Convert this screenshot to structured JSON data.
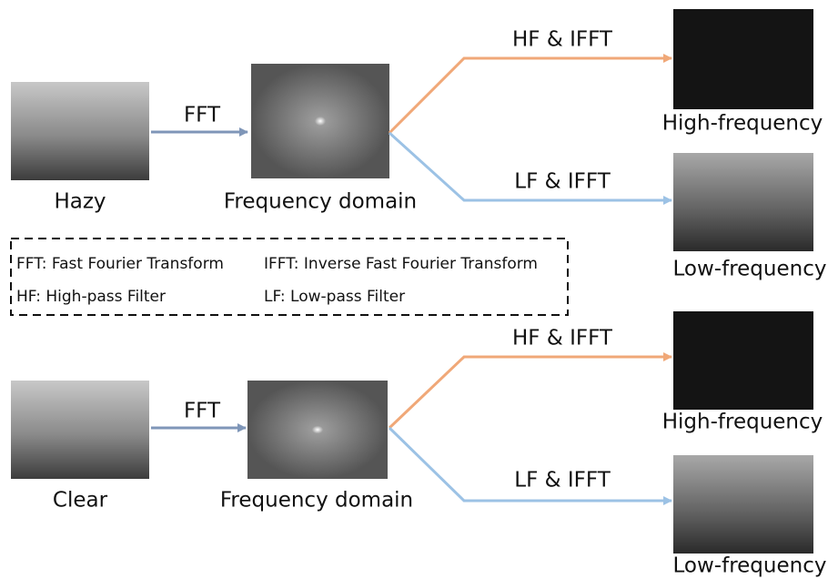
{
  "rows": [
    {
      "input": "Hazy",
      "fft": "FFT",
      "domain": "Frequency domain",
      "high_op": "HF & IFFT",
      "low_op": "LF & IFFT",
      "high": "High-frequency",
      "low": "Low-frequency"
    },
    {
      "input": "Clear",
      "fft": "FFT",
      "domain": "Frequency domain",
      "high_op": "HF & IFFT",
      "low_op": "LF & IFFT",
      "high": "High-frequency",
      "low": "Low-frequency"
    }
  ],
  "legend": [
    "FFT: Fast Fourier Transform",
    "IFFT: Inverse Fast Fourier Transform",
    "HF: High-pass Filter",
    "LF: Low-pass Filter"
  ]
}
